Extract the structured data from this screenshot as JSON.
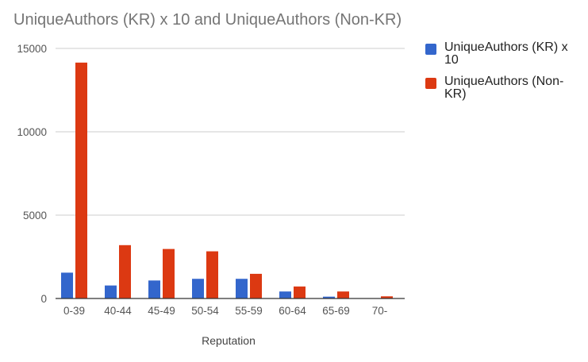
{
  "chart_data": {
    "type": "bar",
    "title": "UniqueAuthors (KR) x 10 and UniqueAuthors (Non-KR)",
    "xlabel": "Reputation",
    "ylabel": "",
    "ylim": [
      0,
      15000
    ],
    "yticks": [
      "0",
      "5000",
      "10000",
      "15000"
    ],
    "categories": [
      "0-39",
      "40-44",
      "45-49",
      "50-54",
      "55-59",
      "60-64",
      "65-69",
      "70-"
    ],
    "series": [
      {
        "name": "UniqueAuthors (KR) x 10",
        "color": "#3366cc",
        "values": [
          1550,
          780,
          1080,
          1180,
          1180,
          420,
          110,
          0
        ]
      },
      {
        "name": "UniqueAuthors (Non-KR)",
        "color": "#dc3912",
        "values": [
          14150,
          3200,
          2970,
          2830,
          1480,
          720,
          420,
          130
        ]
      }
    ],
    "grid": true,
    "legend": "right"
  }
}
